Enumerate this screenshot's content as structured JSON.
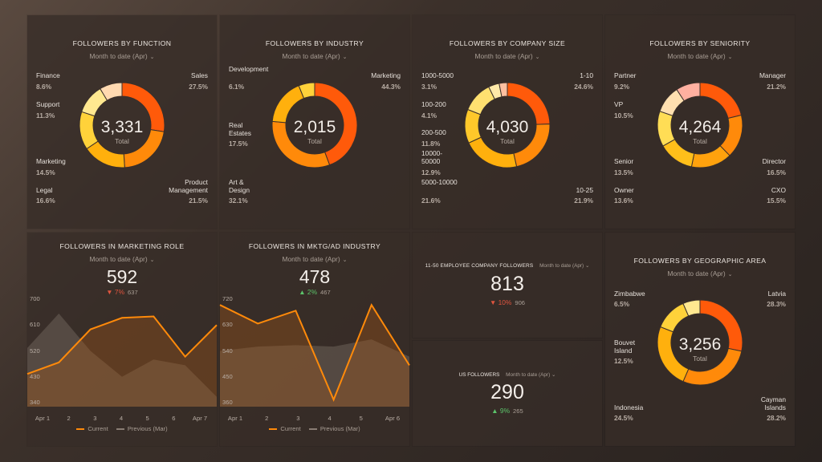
{
  "panels": {
    "function": {
      "title": "FOLLOWERS BY FUNCTION",
      "period": "Month to date (Apr)",
      "total": "3,331",
      "total_label": "Total",
      "slices": [
        {
          "label": "Sales",
          "pct": "27.5%",
          "value": 27.5,
          "color": "#ff5a0a"
        },
        {
          "label": "Product Management",
          "pct": "21.5%",
          "value": 21.5,
          "color": "#ff8a0a"
        },
        {
          "label": "Legal",
          "pct": "16.6%",
          "value": 16.6,
          "color": "#ffb00d"
        },
        {
          "label": "Marketing",
          "pct": "14.5%",
          "value": 14.5,
          "color": "#ffd23a"
        },
        {
          "label": "Support",
          "pct": "11.3%",
          "value": 11.3,
          "color": "#ffe890"
        },
        {
          "label": "Finance",
          "pct": "8.6%",
          "value": 8.6,
          "color": "#ffd9b0"
        }
      ]
    },
    "industry": {
      "title": "FOLLOWERS BY INDUSTRY",
      "period": "Month to date (Apr)",
      "total": "2,015",
      "total_label": "Total",
      "slices": [
        {
          "label": "Marketing",
          "pct": "44.3%",
          "value": 44.3,
          "color": "#ff5a0a"
        },
        {
          "label": "Art & Design",
          "pct": "32.1%",
          "value": 32.1,
          "color": "#ff8a0a"
        },
        {
          "label": "Real Estates",
          "pct": "17.5%",
          "value": 17.5,
          "color": "#ffb00d"
        },
        {
          "label": "Development",
          "pct": "6.1%",
          "value": 6.1,
          "color": "#ffd23a"
        }
      ]
    },
    "company_size": {
      "title": "FOLLOWERS BY COMPANY SIZE",
      "period": "Month to date (Apr)",
      "total": "4,030",
      "total_label": "Total",
      "slices": [
        {
          "label": "1-10",
          "pct": "24.6%",
          "value": 24.6,
          "color": "#ff5a0a"
        },
        {
          "label": "10-25",
          "pct": "21.9%",
          "value": 21.9,
          "color": "#ff8a0a"
        },
        {
          "label": "5000-10000",
          "pct": "21.6%",
          "value": 21.6,
          "color": "#ffb00d"
        },
        {
          "label": "10000-50000",
          "pct": "12.9%",
          "value": 12.9,
          "color": "#ffc82a"
        },
        {
          "label": "200-500",
          "pct": "11.8%",
          "value": 11.8,
          "color": "#ffe070"
        },
        {
          "label": "100-200",
          "pct": "4.1%",
          "value": 4.1,
          "color": "#ffe9a8"
        },
        {
          "label": "1000-5000",
          "pct": "3.1%",
          "value": 3.1,
          "color": "#ffc0a0"
        }
      ]
    },
    "seniority": {
      "title": "FOLLOWERS BY SENIORITY",
      "period": "Month to date (Apr)",
      "total": "4,264",
      "total_label": "Total",
      "slices": [
        {
          "label": "Manager",
          "pct": "21.2%",
          "value": 21.2,
          "color": "#ff5a0a"
        },
        {
          "label": "Director",
          "pct": "16.5%",
          "value": 16.5,
          "color": "#ff8a0a"
        },
        {
          "label": "CXO",
          "pct": "15.5%",
          "value": 15.5,
          "color": "#ffa20d"
        },
        {
          "label": "Owner",
          "pct": "13.6%",
          "value": 13.6,
          "color": "#ffbf1a"
        },
        {
          "label": "Senior",
          "pct": "13.5%",
          "value": 13.5,
          "color": "#ffdd55"
        },
        {
          "label": "VP",
          "pct": "10.5%",
          "value": 10.5,
          "color": "#ffe0b0"
        },
        {
          "label": "Partner",
          "pct": "9.2%",
          "value": 9.2,
          "color": "#ffb0a0"
        }
      ]
    },
    "geo": {
      "title": "FOLLOWERS BY GEOGRAPHIC AREA",
      "period": "Month to date (Apr)",
      "total": "3,256",
      "total_label": "Total",
      "slices": [
        {
          "label": "Latvia",
          "pct": "28.3%",
          "value": 28.3,
          "color": "#ff5a0a"
        },
        {
          "label": "Cayman Islands",
          "pct": "28.2%",
          "value": 28.2,
          "color": "#ff8a0a"
        },
        {
          "label": "Indonesia",
          "pct": "24.5%",
          "value": 24.5,
          "color": "#ffb00d"
        },
        {
          "label": "Bouvet Island",
          "pct": "12.5%",
          "value": 12.5,
          "color": "#ffd23a"
        },
        {
          "label": "Zimbabwe",
          "pct": "6.5%",
          "value": 6.5,
          "color": "#ffe890"
        }
      ]
    },
    "mkt_role": {
      "title": "FOLLOWERS IN MARKETING ROLE",
      "period": "Month to date (Apr)",
      "value": "592",
      "delta": "▼ 7%",
      "previous": "637",
      "legend_current": "Current",
      "legend_previous": "Previous (Mar)"
    },
    "mktg_industry": {
      "title": "FOLLOWERS IN MKTG/AD INDUSTRY",
      "period": "Month to date (Apr)",
      "value": "478",
      "delta": "▲ 2%",
      "previous": "467",
      "legend_current": "Current",
      "legend_previous": "Previous (Mar)"
    },
    "emp_followers": {
      "title": "11-50 EMPLOYEE COMPANY FOLLOWERS",
      "period": "Month to date (Apr)",
      "value": "813",
      "delta": "▼ 10%",
      "previous": "906"
    },
    "us_followers": {
      "title": "US FOLLOWERS",
      "period": "Month to date (Apr)",
      "value": "290",
      "delta": "▲ 9%",
      "previous": "265"
    }
  },
  "chart_data": [
    {
      "type": "area",
      "title": "FOLLOWERS IN MARKETING ROLE",
      "categories": [
        "Apr 1",
        "2",
        "3",
        "4",
        "5",
        "6",
        "Apr 7"
      ],
      "x_labels_shown": [
        "Apr 1",
        "2",
        "3",
        "4",
        "5",
        "6",
        "Apr 7"
      ],
      "yticks": [
        "700",
        "610",
        "520",
        "430",
        "340"
      ],
      "ylim": [
        340,
        700
      ],
      "series": [
        {
          "name": "Current",
          "values": [
            440,
            480,
            595,
            635,
            640,
            500,
            610
          ]
        },
        {
          "name": "Previous (Mar)",
          "values": [
            530,
            650,
            520,
            430,
            490,
            470,
            360
          ]
        }
      ]
    },
    {
      "type": "area",
      "title": "FOLLOWERS IN MKTG/AD INDUSTRY",
      "categories": [
        "Apr 1",
        "2",
        "3",
        "4",
        "5",
        "Apr 6"
      ],
      "x_labels_shown": [
        "Apr 1",
        "2",
        "3",
        "4",
        "5",
        "Apr 6"
      ],
      "yticks": [
        "720",
        "630",
        "540",
        "450",
        "360"
      ],
      "ylim": [
        360,
        720
      ],
      "series": [
        {
          "name": "Current",
          "values": [
            700,
            635,
            680,
            370,
            700,
            490
          ]
        },
        {
          "name": "Previous (Mar)",
          "values": [
            540,
            555,
            560,
            555,
            580,
            520
          ]
        }
      ]
    }
  ]
}
